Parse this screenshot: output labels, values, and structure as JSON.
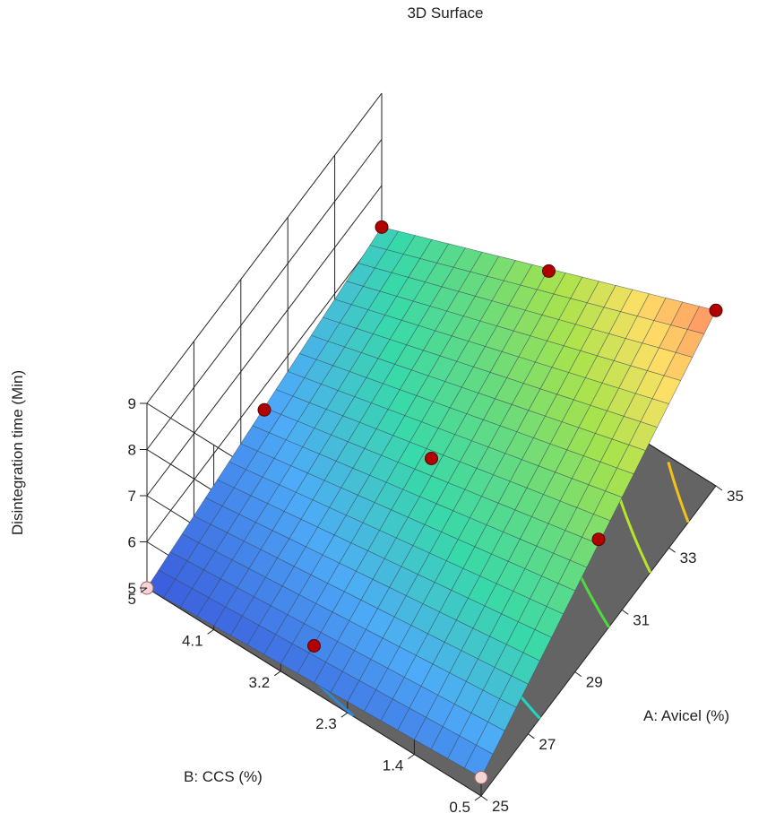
{
  "chart_data": {
    "type": "surface",
    "title": "3D Surface",
    "xlabel": "A: Avicel (%)",
    "ylabel": "B: CCS (%)",
    "zlabel": "Disintegration time (Min)",
    "x_ticks": [
      "25",
      "27",
      "29",
      "31",
      "33",
      "35"
    ],
    "y_ticks": [
      "0.5",
      "1.4",
      "2.3",
      "3.2",
      "4.1",
      "5"
    ],
    "z_ticks": [
      "5",
      "6",
      "7",
      "8",
      "9"
    ],
    "xlim": [
      25,
      35
    ],
    "ylim": [
      0.5,
      5
    ],
    "zlim": [
      5,
      9
    ],
    "surface_corners": {
      "A25_B0.5": 5.4,
      "A25_B5": 5.0,
      "A35_B5": 6.1,
      "A35_B0.5": 8.8
    },
    "grid_resolution": 20,
    "colormap": [
      "#3b5bdb",
      "#4dabf7",
      "#38d9a9",
      "#69db7c",
      "#a9e34b",
      "#ffe066",
      "#ff8a65"
    ],
    "design_points": [
      {
        "A": 25,
        "B": 0.5,
        "z": 5.4,
        "above": false
      },
      {
        "A": 25,
        "B": 5,
        "z": 5.0,
        "above": false
      },
      {
        "A": 35,
        "B": 5,
        "z": 6.1,
        "above": true
      },
      {
        "A": 35,
        "B": 0.5,
        "z": 8.8,
        "above": true
      },
      {
        "A": 30,
        "B": 0.5,
        "z": 7.2,
        "above": true
      },
      {
        "A": 25,
        "B": 2.75,
        "z": 6.0,
        "above": true
      },
      {
        "A": 35,
        "B": 2.75,
        "z": 7.4,
        "above": true
      },
      {
        "A": 30,
        "B": 5,
        "z": 5.5,
        "above": true
      },
      {
        "A": 30,
        "B": 2.75,
        "z": 6.7,
        "above": true
      }
    ],
    "floor_contours": [
      {
        "level": 5.25,
        "color": "#2f86d6"
      },
      {
        "level": 6.25,
        "color": "#1fd6c0"
      },
      {
        "level": 7.25,
        "color": "#4fdb3f"
      },
      {
        "level": 7.85,
        "color": "#b6e52a"
      },
      {
        "level": 8.4,
        "color": "#f2c21b"
      }
    ]
  }
}
